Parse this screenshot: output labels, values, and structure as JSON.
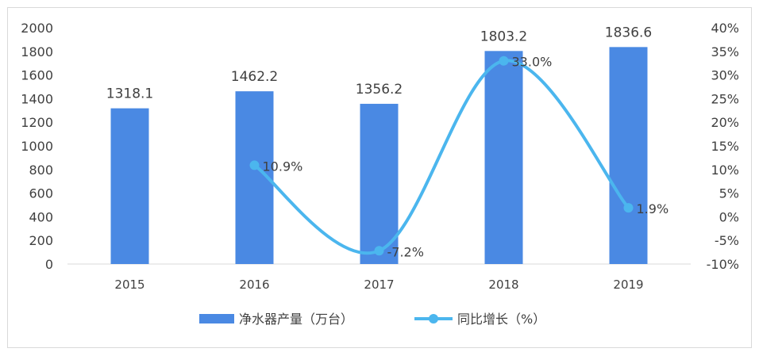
{
  "chart_data": {
    "type": "bar",
    "categories": [
      "2015",
      "2016",
      "2017",
      "2018",
      "2019"
    ],
    "series": [
      {
        "name": "净水器产量（万台）",
        "type": "bar",
        "axis": "left",
        "values": [
          1318.1,
          1462.2,
          1356.2,
          1803.2,
          1836.6
        ],
        "labels": [
          "1318.1",
          "1462.2",
          "1356.2",
          "1803.2",
          "1836.6"
        ],
        "color": "#4a89e3"
      },
      {
        "name": "同比增长（%）",
        "type": "line",
        "axis": "right",
        "values": [
          null,
          10.9,
          -7.2,
          33.0,
          1.9
        ],
        "labels": [
          "",
          "10.9%",
          "-7.2%",
          "33.0%",
          "1.9%"
        ],
        "color": "#4bb6ee"
      }
    ],
    "left_axis": {
      "min": 0,
      "max": 2000,
      "step": 200,
      "ticks": [
        "0",
        "200",
        "400",
        "600",
        "800",
        "1000",
        "1200",
        "1400",
        "1600",
        "1800",
        "2000"
      ]
    },
    "right_axis": {
      "min": -10,
      "max": 40,
      "step": 5,
      "ticks": [
        "-10%",
        "-5%",
        "0%",
        "5%",
        "10%",
        "15%",
        "20%",
        "25%",
        "30%",
        "35%",
        "40%"
      ]
    },
    "grid": false,
    "legend_position": "bottom"
  }
}
